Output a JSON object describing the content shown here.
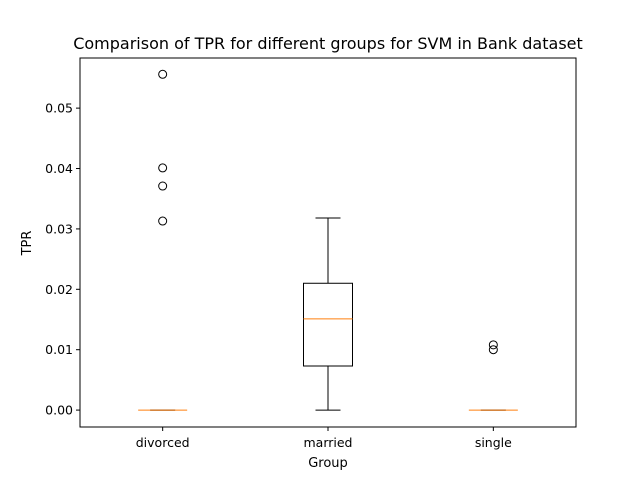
{
  "chart_data": {
    "type": "boxplot",
    "title": "Comparison of TPR for different groups for SVM in Bank dataset",
    "xlabel": "Group",
    "ylabel": "TPR",
    "ylim": [
      -0.0028,
      0.0583
    ],
    "yticks": [
      0.0,
      0.01,
      0.02,
      0.03,
      0.04,
      0.05
    ],
    "ytick_labels": [
      "0.00",
      "0.01",
      "0.02",
      "0.03",
      "0.04",
      "0.05"
    ],
    "categories": [
      "divorced",
      "married",
      "single"
    ],
    "boxes": [
      {
        "group": "divorced",
        "whisker_low": 0.0,
        "q1": 0.0,
        "median": 0.0,
        "q3": 0.0,
        "whisker_high": 0.0,
        "outliers": [
          0.0556,
          0.0401,
          0.0371,
          0.0313
        ]
      },
      {
        "group": "married",
        "whisker_low": 0.0,
        "q1": 0.0073,
        "median": 0.0151,
        "q3": 0.021,
        "whisker_high": 0.0318,
        "outliers": []
      },
      {
        "group": "single",
        "whisker_low": 0.0,
        "q1": 0.0,
        "median": 0.0,
        "q3": 0.0,
        "whisker_high": 0.0,
        "outliers": [
          0.0108,
          0.01
        ]
      }
    ],
    "grid": false,
    "colors": {
      "box": "#000000",
      "median": "#ff7f0e",
      "outlier": "#000000",
      "background": "#ffffff"
    }
  }
}
